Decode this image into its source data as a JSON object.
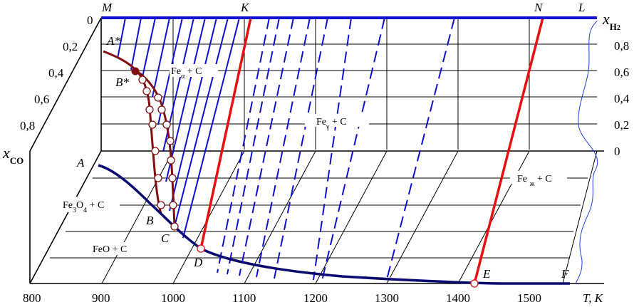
{
  "points": {
    "M": "M",
    "K": "K",
    "N": "N",
    "L": "L",
    "A_star": "A*",
    "B_star": "B*",
    "A": "A",
    "B": "B",
    "C": "C",
    "D": "D",
    "E": "E",
    "F": "F"
  },
  "axes": {
    "x_co_symbol": "x",
    "x_co_sub": "CO",
    "x_h2_symbol": "x",
    "x_h2_sub": "H",
    "x_h2_subsub": "2",
    "t_label": "T, K",
    "t_ticks": [
      "800",
      "900",
      "1000",
      "1100",
      "1200",
      "1300",
      "1400",
      "1500"
    ],
    "co_ticks": [
      "0",
      "0,2",
      "0,4",
      "0,6",
      "0,8"
    ],
    "h2_ticks": [
      "0,8",
      "0,6",
      "0,4",
      "0,2",
      "0"
    ]
  },
  "phases": {
    "fe_alpha": {
      "base": "Fe",
      "sub": "α",
      "rest": " + C"
    },
    "fe_gamma": {
      "base": "Fe",
      "sub": "γ",
      "rest": " + C"
    },
    "fe_liquid": {
      "base": "Fe ",
      "sub": "ж",
      "rest": " + C"
    },
    "fe3o4": {
      "base": "Fe",
      "sub1": "3",
      "mid": "O",
      "sub2": "4",
      "rest": " + C"
    },
    "feo": "FeO + C"
  },
  "colors": {
    "blue": "#1010d0",
    "red": "#e81010",
    "dark_red": "#801010",
    "navy": "#0a0a70",
    "thin_blue": "#2040e0"
  }
}
